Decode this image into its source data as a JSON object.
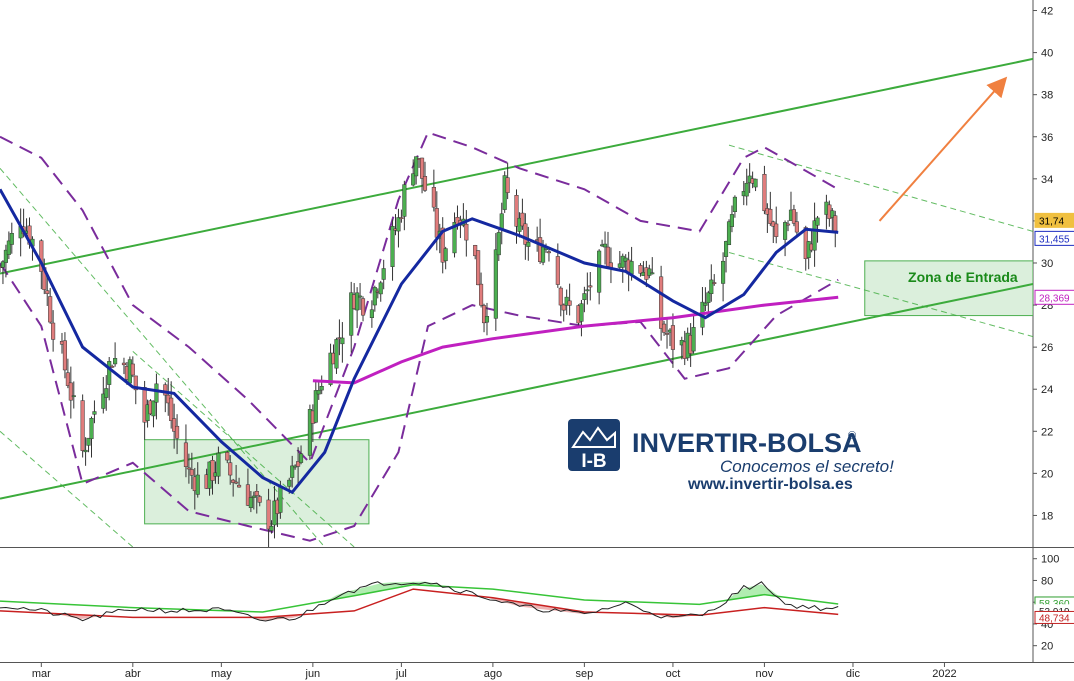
{
  "chart_data": [
    {
      "type": "candlestick",
      "title": "",
      "xlabel": "",
      "ylabel": "",
      "ylim": [
        16.5,
        42.5
      ],
      "y_ticks": [
        18,
        20,
        22,
        24,
        26,
        28,
        30,
        32,
        34,
        36,
        38,
        40,
        42
      ],
      "x_ticks": [
        "mar",
        "abr",
        "may",
        "jun",
        "jul",
        "ago",
        "sep",
        "oct",
        "nov",
        "dic",
        "2022"
      ],
      "x_range": [
        "2021-02-15",
        "2022-01-31"
      ],
      "grid": false,
      "price_path": [
        [
          "2021-02-15",
          29.8
        ],
        [
          "2021-02-22",
          32.2
        ],
        [
          "2021-02-28",
          30.5
        ],
        [
          "2021-03-05",
          27.0
        ],
        [
          "2021-03-10",
          24.5
        ],
        [
          "2021-03-15",
          21.0
        ],
        [
          "2021-03-20",
          23.5
        ],
        [
          "2021-03-25",
          25.5
        ],
        [
          "2021-03-31",
          25.0
        ],
        [
          "2021-04-05",
          22.5
        ],
        [
          "2021-04-10",
          24.8
        ],
        [
          "2021-04-15",
          22.0
        ],
        [
          "2021-04-20",
          20.0
        ],
        [
          "2021-04-25",
          19.5
        ],
        [
          "2021-04-30",
          20.5
        ],
        [
          "2021-05-05",
          19.8
        ],
        [
          "2021-05-10",
          19.0
        ],
        [
          "2021-05-15",
          18.0
        ],
        [
          "2021-05-18",
          17.8
        ],
        [
          "2021-05-22",
          19.0
        ],
        [
          "2021-05-27",
          20.5
        ],
        [
          "2021-05-31",
          22.5
        ],
        [
          "2021-06-05",
          25.0
        ],
        [
          "2021-06-10",
          26.5
        ],
        [
          "2021-06-15",
          28.5
        ],
        [
          "2021-06-20",
          28.0
        ],
        [
          "2021-06-25",
          30.0
        ],
        [
          "2021-06-30",
          32.0
        ],
        [
          "2021-07-03",
          34.0
        ],
        [
          "2021-07-06",
          35.2
        ],
        [
          "2021-07-10",
          33.0
        ],
        [
          "2021-07-15",
          30.5
        ],
        [
          "2021-07-20",
          32.5
        ],
        [
          "2021-07-25",
          31.0
        ],
        [
          "2021-07-29",
          27.5
        ],
        [
          "2021-08-02",
          30.0
        ],
        [
          "2021-08-05",
          33.5
        ],
        [
          "2021-08-10",
          31.5
        ],
        [
          "2021-08-15",
          30.5
        ],
        [
          "2021-08-20",
          31.0
        ],
        [
          "2021-08-25",
          28.0
        ],
        [
          "2021-08-30",
          27.5
        ],
        [
          "2021-09-03",
          29.0
        ],
        [
          "2021-09-08",
          30.5
        ],
        [
          "2021-09-13",
          30.0
        ],
        [
          "2021-09-18",
          30.0
        ],
        [
          "2021-09-23",
          29.5
        ],
        [
          "2021-09-27",
          27.0
        ],
        [
          "2021-10-02",
          26.0
        ],
        [
          "2021-10-07",
          26.2
        ],
        [
          "2021-10-12",
          28.0
        ],
        [
          "2021-10-17",
          29.5
        ],
        [
          "2021-10-22",
          32.5
        ],
        [
          "2021-10-27",
          34.5
        ],
        [
          "2021-11-01",
          32.8
        ],
        [
          "2021-11-05",
          31.0
        ],
        [
          "2021-11-10",
          32.5
        ],
        [
          "2021-11-15",
          30.0
        ],
        [
          "2021-11-20",
          32.8
        ],
        [
          "2021-11-25",
          31.74
        ]
      ],
      "moving_average_short": [
        [
          "2021-02-15",
          33.5
        ],
        [
          "2021-03-01",
          30.0
        ],
        [
          "2021-03-15",
          26.0
        ],
        [
          "2021-04-01",
          24.1
        ],
        [
          "2021-04-15",
          23.8
        ],
        [
          "2021-05-01",
          21.5
        ],
        [
          "2021-05-15",
          19.8
        ],
        [
          "2021-05-25",
          19.1
        ],
        [
          "2021-06-05",
          21.0
        ],
        [
          "2021-06-15",
          24.5
        ],
        [
          "2021-07-01",
          29.0
        ],
        [
          "2021-07-15",
          31.5
        ],
        [
          "2021-07-25",
          32.1
        ],
        [
          "2021-08-10",
          31.3
        ],
        [
          "2021-09-01",
          30.0
        ],
        [
          "2021-09-15",
          29.6
        ],
        [
          "2021-10-01",
          28.2
        ],
        [
          "2021-10-12",
          27.4
        ],
        [
          "2021-10-25",
          28.5
        ],
        [
          "2021-11-05",
          30.5
        ],
        [
          "2021-11-15",
          31.6
        ],
        [
          "2021-11-26",
          31.455
        ]
      ],
      "moving_average_long": [
        [
          "2021-06-01",
          24.4
        ],
        [
          "2021-06-15",
          24.3
        ],
        [
          "2021-07-01",
          25.3
        ],
        [
          "2021-07-15",
          26.0
        ],
        [
          "2021-08-01",
          26.4
        ],
        [
          "2021-09-01",
          27.0
        ],
        [
          "2021-10-01",
          27.4
        ],
        [
          "2021-11-01",
          28.0
        ],
        [
          "2021-11-26",
          28.369
        ]
      ],
      "band_upper": [
        [
          "2021-02-15",
          36.0
        ],
        [
          "2021-03-01",
          35.0
        ],
        [
          "2021-03-15",
          32.5
        ],
        [
          "2021-04-01",
          28.0
        ],
        [
          "2021-04-20",
          26.0
        ],
        [
          "2021-05-10",
          23.5
        ],
        [
          "2021-05-31",
          20.5
        ],
        [
          "2021-06-15",
          26.0
        ],
        [
          "2021-06-30",
          33.0
        ],
        [
          "2021-07-10",
          36.2
        ],
        [
          "2021-07-25",
          35.5
        ],
        [
          "2021-08-10",
          34.5
        ],
        [
          "2021-09-01",
          33.5
        ],
        [
          "2021-09-20",
          32.0
        ],
        [
          "2021-10-10",
          31.5
        ],
        [
          "2021-10-25",
          35.0
        ],
        [
          "2021-11-01",
          35.5
        ],
        [
          "2021-11-26",
          33.5
        ]
      ],
      "band_lower": [
        [
          "2021-02-15",
          30.0
        ],
        [
          "2021-03-01",
          27.0
        ],
        [
          "2021-03-15",
          19.5
        ],
        [
          "2021-04-01",
          20.5
        ],
        [
          "2021-04-20",
          18.2
        ],
        [
          "2021-05-10",
          17.5
        ],
        [
          "2021-05-31",
          16.8
        ],
        [
          "2021-06-15",
          17.5
        ],
        [
          "2021-06-30",
          21.0
        ],
        [
          "2021-07-10",
          27.0
        ],
        [
          "2021-07-25",
          28.0
        ],
        [
          "2021-08-10",
          27.5
        ],
        [
          "2021-09-01",
          27.0
        ],
        [
          "2021-09-20",
          27.2
        ],
        [
          "2021-10-05",
          24.5
        ],
        [
          "2021-10-20",
          25.0
        ],
        [
          "2021-11-05",
          27.5
        ],
        [
          "2021-11-26",
          29.2
        ]
      ],
      "trendlines": [
        {
          "style": "solid",
          "points": [
            [
              "2021-02-15",
              18.8
            ],
            [
              "2022-01-31",
              29.0
            ]
          ]
        },
        {
          "style": "solid",
          "points": [
            [
              "2021-02-15",
              29.5
            ],
            [
              "2022-01-31",
              39.7
            ]
          ]
        },
        {
          "style": "dashed",
          "points": [
            [
              "2021-02-15",
              34.5
            ],
            [
              "2021-06-05",
              16.5
            ]
          ]
        },
        {
          "style": "dashed",
          "points": [
            [
              "2021-02-15",
              22.0
            ],
            [
              "2021-04-01",
              16.5
            ]
          ]
        },
        {
          "style": "dashed",
          "points": [
            [
              "2021-04-01",
              25.8
            ],
            [
              "2021-06-15",
              16.5
            ]
          ]
        },
        {
          "style": "dashed",
          "points": [
            [
              "2021-10-20",
              35.6
            ],
            [
              "2022-01-31",
              31.5
            ]
          ]
        },
        {
          "style": "dashed",
          "points": [
            [
              "2021-10-20",
              30.5
            ],
            [
              "2022-01-31",
              26.5
            ]
          ]
        }
      ],
      "zones": [
        {
          "label": "",
          "x": [
            "2021-04-05",
            "2021-06-20"
          ],
          "y": [
            17.6,
            21.6
          ]
        },
        {
          "label": "Zona de Entrada",
          "x": [
            "2021-12-05",
            "2022-01-31"
          ],
          "y": [
            27.5,
            30.1
          ]
        }
      ],
      "arrow": {
        "from": [
          "2021-12-10",
          32.0
        ],
        "to": [
          "2022-01-20",
          38.5
        ]
      },
      "price_tags": [
        {
          "label": "31,74",
          "value": 31.74,
          "color": "#f0c040"
        },
        {
          "label": "31,455",
          "value": 31.455,
          "color": "#1c2cc0"
        },
        {
          "label": "28,369",
          "value": 28.369,
          "color": "#c020c0"
        }
      ],
      "colors": {
        "up": "#4caf50",
        "down": "#e07c7c",
        "short_ma": "#1428a0",
        "long_ma": "#c020c0",
        "band": "#7a2c9c",
        "trend": "#3cab3c",
        "zone": "#4caf50",
        "arrow": "#f08040"
      }
    },
    {
      "type": "line",
      "title": "",
      "ylim": [
        5,
        108
      ],
      "y_ticks": [
        20,
        40,
        60,
        80,
        100
      ],
      "series": [
        {
          "style": "oscillator",
          "values": [
            [
              "2021-02-15",
              57
            ],
            [
              "2021-03-01",
              52
            ],
            [
              "2021-03-15",
              44
            ],
            [
              "2021-04-01",
              54
            ],
            [
              "2021-04-15",
              52
            ],
            [
              "2021-05-01",
              53
            ],
            [
              "2021-05-15",
              43
            ],
            [
              "2021-05-27",
              46
            ],
            [
              "2021-06-10",
              68
            ],
            [
              "2021-06-25",
              78
            ],
            [
              "2021-07-10",
              79
            ],
            [
              "2021-07-25",
              68
            ],
            [
              "2021-08-10",
              56
            ],
            [
              "2021-09-01",
              49
            ],
            [
              "2021-09-15",
              59
            ],
            [
              "2021-09-30",
              45
            ],
            [
              "2021-10-12",
              49
            ],
            [
              "2021-10-25",
              73
            ],
            [
              "2021-11-01",
              77
            ],
            [
              "2021-11-08",
              58
            ],
            [
              "2021-11-18",
              55
            ],
            [
              "2021-11-26",
              53.919
            ]
          ]
        },
        {
          "style": "signal-upper",
          "values": [
            [
              "2021-02-15",
              61
            ],
            [
              "2021-04-01",
              55
            ],
            [
              "2021-05-15",
              51
            ],
            [
              "2021-06-15",
              66
            ],
            [
              "2021-07-05",
              76
            ],
            [
              "2021-08-01",
              72
            ],
            [
              "2021-09-01",
              62
            ],
            [
              "2021-10-10",
              58
            ],
            [
              "2021-11-01",
              67
            ],
            [
              "2021-11-26",
              58.36
            ]
          ]
        },
        {
          "style": "signal-lower",
          "values": [
            [
              "2021-02-15",
              52
            ],
            [
              "2021-04-01",
              46
            ],
            [
              "2021-05-15",
              46
            ],
            [
              "2021-06-15",
              52
            ],
            [
              "2021-07-05",
              72
            ],
            [
              "2021-08-01",
              64
            ],
            [
              "2021-09-01",
              51
            ],
            [
              "2021-10-10",
              48
            ],
            [
              "2021-11-01",
              55
            ],
            [
              "2021-11-26",
              48.734
            ]
          ]
        }
      ],
      "value_tags": [
        {
          "label": "58,360",
          "value": 58.36,
          "color": "#2e9e2e"
        },
        {
          "label": "53,919",
          "value": 53.919,
          "color": "#222222"
        },
        {
          "label": "48,734",
          "value": 48.734,
          "color": "#c02020"
        }
      ],
      "colors": {
        "oscillator": "#222222",
        "upper": "#38c438",
        "lower": "#c82020",
        "fill_up": "#9ee89e",
        "fill_down": "#e8a0a0"
      }
    }
  ],
  "logo": {
    "name": "INVERTIR-BOLSA",
    "registered": "®",
    "tagline": "Conocemos el secreto!",
    "url": "www.invertir-bolsa.es",
    "icon": "ib-monogram-icon",
    "color": "#1a3d6e"
  }
}
